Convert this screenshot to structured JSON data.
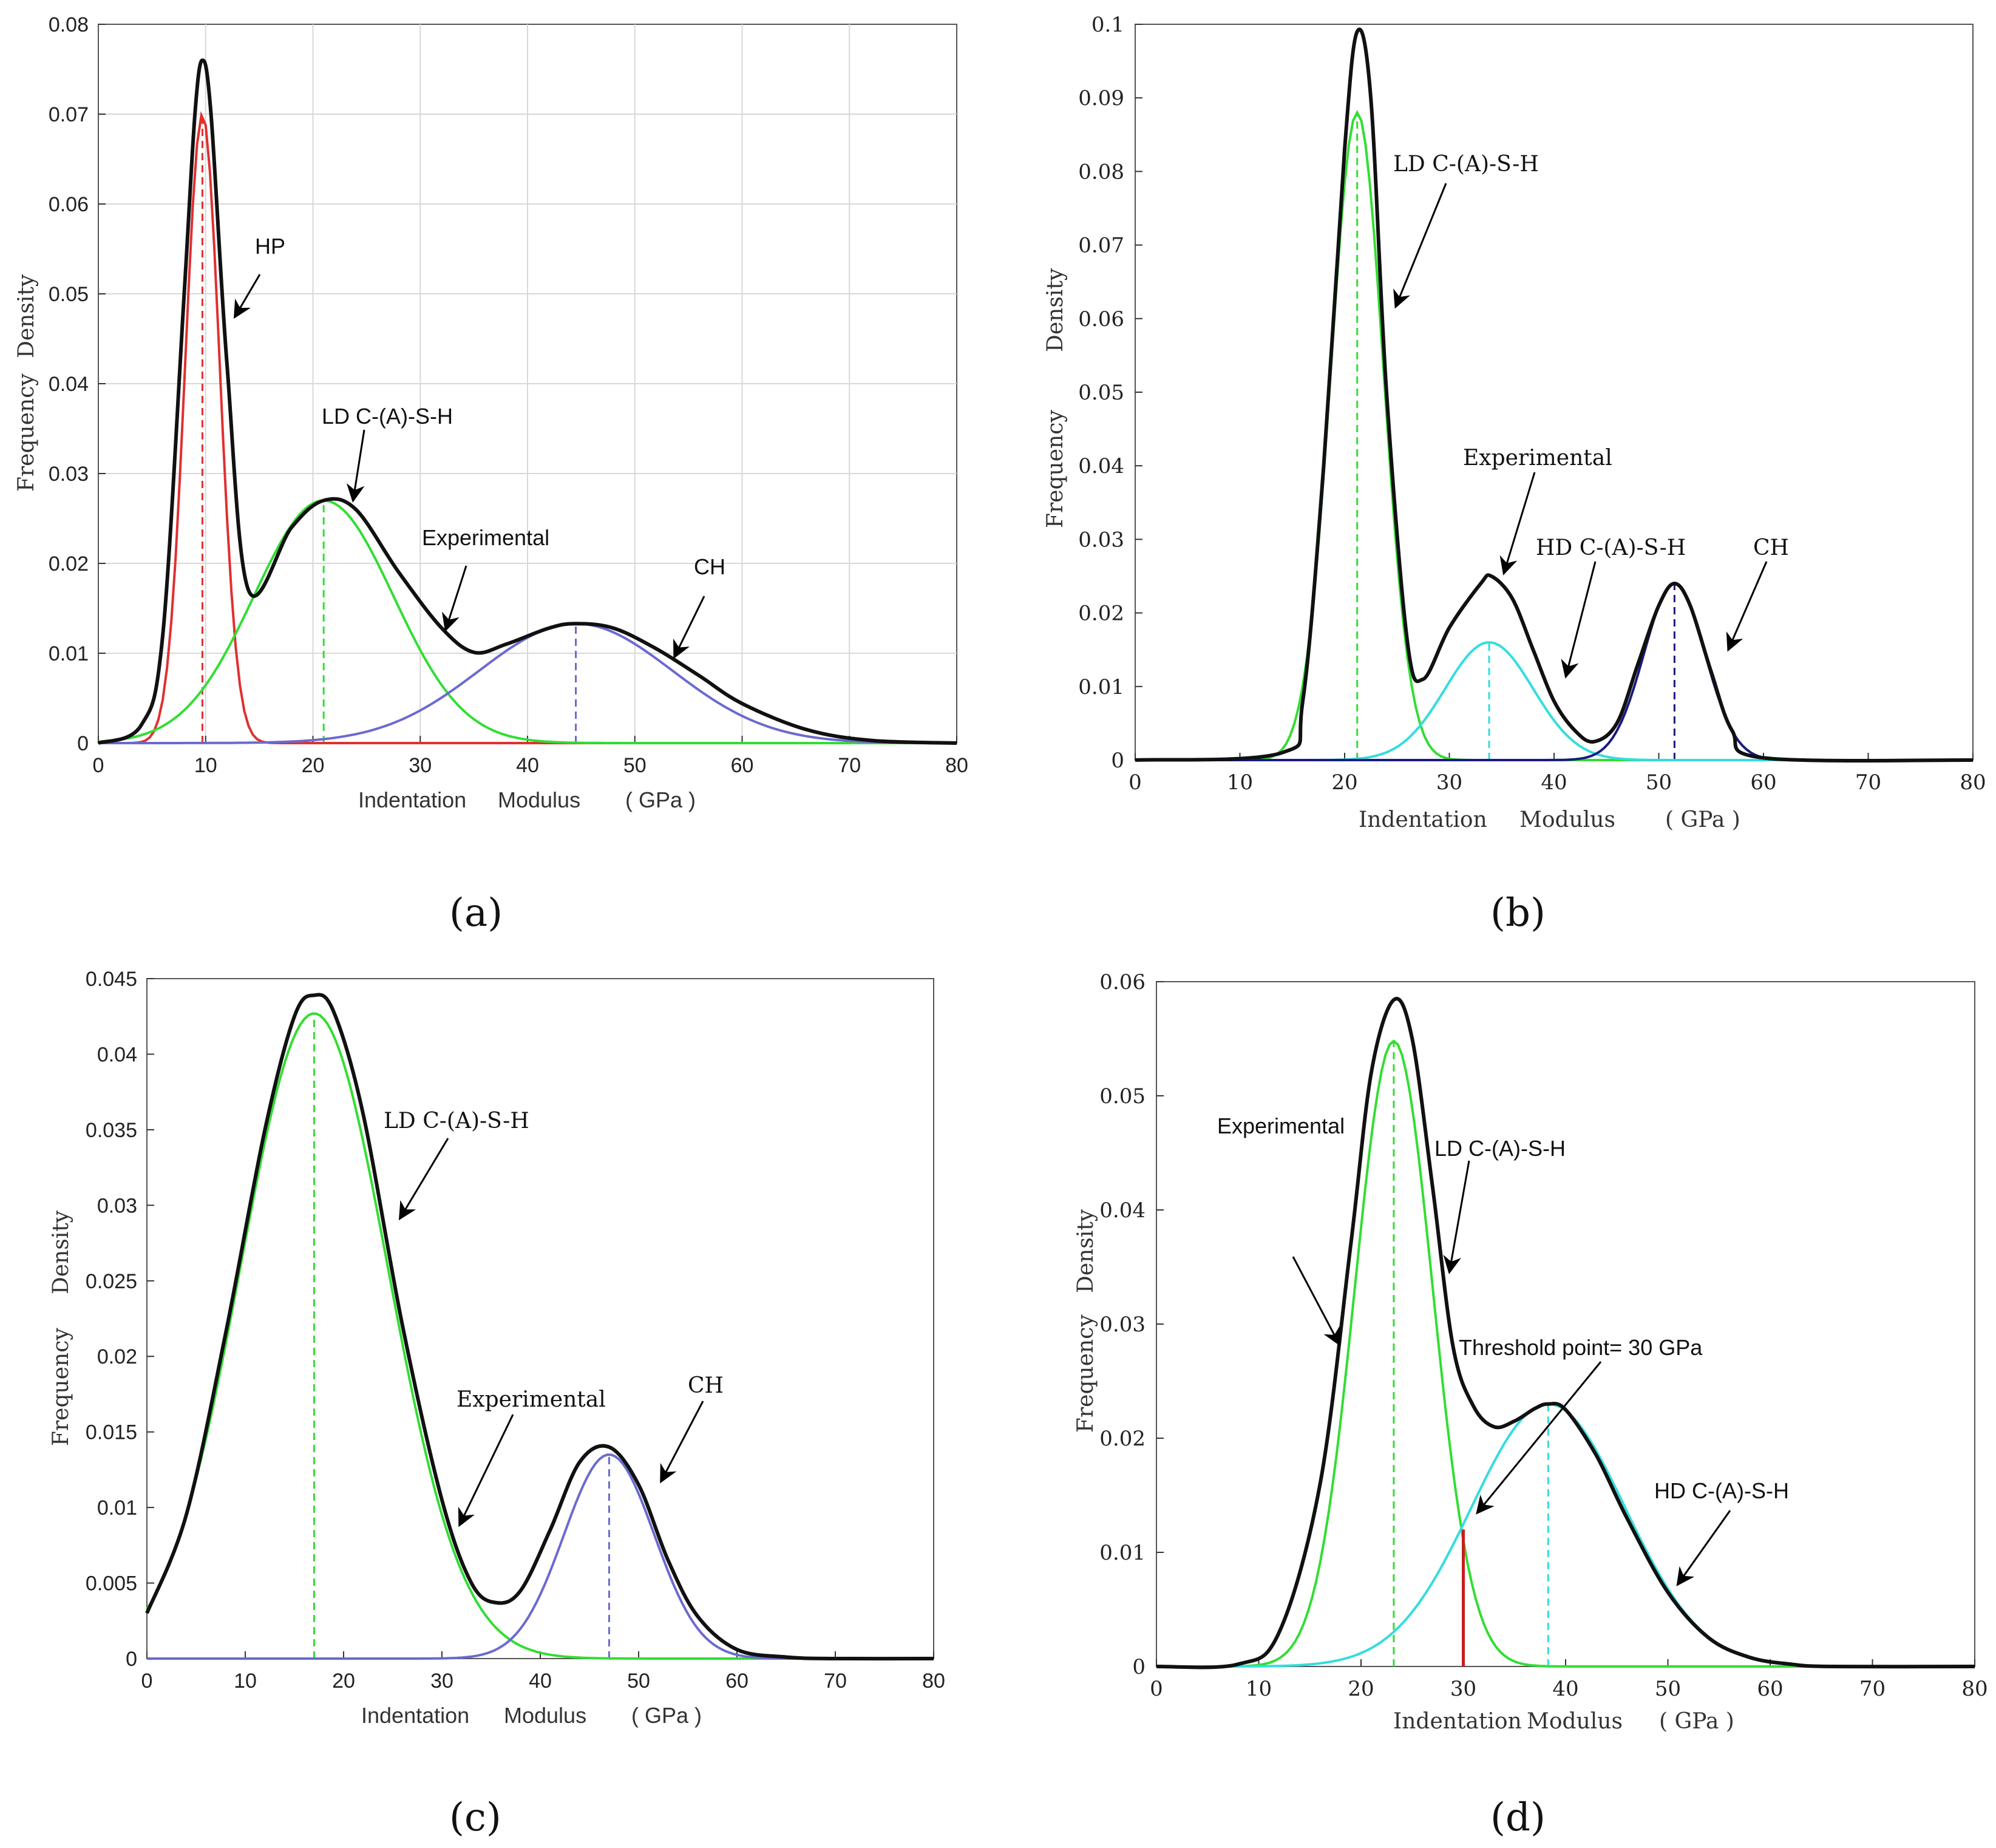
{
  "panels": {
    "a": {
      "caption": "(a)",
      "xlabel_parts": [
        "Indentation",
        "Modulus",
        "( GPa )"
      ],
      "ylabel_parts": [
        "Frequency",
        "Density"
      ],
      "annotations": [
        "HP",
        "LD C-(A)-S-H",
        "Experimental",
        "CH"
      ]
    },
    "b": {
      "caption": "(b)",
      "xlabel_parts": [
        "Indentation",
        "Modulus",
        "( GPa )"
      ],
      "ylabel_parts": [
        "Frequency",
        "Density"
      ],
      "annotations": [
        "LD C-(A)-S-H",
        "Experimental",
        "HD C-(A)-S-H",
        "CH"
      ]
    },
    "c": {
      "caption": "(c)",
      "xlabel_parts": [
        "Indentation",
        "Modulus",
        "( GPa )"
      ],
      "ylabel_parts": [
        "Frequency",
        "Density"
      ],
      "annotations": [
        "LD C-(A)-S-H",
        "Experimental",
        "CH"
      ]
    },
    "d": {
      "caption": "(d)",
      "xlabel_parts": [
        "Indentation",
        "Modulus",
        "( GPa )"
      ],
      "ylabel_parts": [
        "Frequency",
        "Density"
      ],
      "annotations": [
        "Experimental",
        "LD C-(A)-S-H",
        "Threshold point= 30 GPa",
        "HD C-(A)-S-H"
      ]
    }
  },
  "chart_data": [
    {
      "panel": "a",
      "type": "line",
      "title": "",
      "xlabel": "Indentation Modulus ( GPa )",
      "ylabel": "Frequency Density",
      "xlim": [
        0,
        80
      ],
      "ylim": [
        0,
        0.08
      ],
      "xticks": [
        "0",
        "10",
        "20",
        "30",
        "40",
        "50",
        "60",
        "70",
        "80"
      ],
      "yticks": [
        "0",
        "0.01",
        "0.02",
        "0.03",
        "0.04",
        "0.05",
        "0.06",
        "0.07",
        "0.08"
      ],
      "grid": true,
      "components": [
        {
          "name": "HP",
          "color": "#e03030",
          "mean": 9.7,
          "sd": 1.6,
          "peak": 0.07
        },
        {
          "name": "LD C-(A)-S-H",
          "color": "#33dd33",
          "mean": 21,
          "sd": 6.5,
          "peak": 0.027
        },
        {
          "name": "CH",
          "color": "#6a6ad0",
          "mean": 44.5,
          "sd": 9,
          "peak": 0.0133
        }
      ],
      "series": [
        {
          "name": "Experimental",
          "color": "#111111",
          "x": [
            0,
            4,
            6,
            8,
            9,
            9.7,
            10.5,
            12,
            14,
            18,
            21,
            24,
            28,
            32,
            35,
            38,
            42,
            44.5,
            48,
            52,
            56,
            60,
            66,
            72,
            80
          ],
          "y": [
            0,
            0.002,
            0.012,
            0.05,
            0.07,
            0.076,
            0.07,
            0.042,
            0.017,
            0.024,
            0.027,
            0.026,
            0.019,
            0.0128,
            0.0101,
            0.011,
            0.0128,
            0.0133,
            0.0128,
            0.0105,
            0.0075,
            0.0044,
            0.0015,
            0.0003,
            0
          ]
        }
      ]
    },
    {
      "panel": "b",
      "type": "line",
      "title": "",
      "xlabel": "Indentation Modulus ( GPa )",
      "ylabel": "Frequency Density",
      "xlim": [
        0,
        80
      ],
      "ylim": [
        0,
        0.1
      ],
      "xticks": [
        "0",
        "10",
        "20",
        "30",
        "40",
        "50",
        "60",
        "70",
        "80"
      ],
      "yticks": [
        "0",
        "0.01",
        "0.02",
        "0.03",
        "0.04",
        "0.05",
        "0.06",
        "0.07",
        "0.08",
        "0.09",
        "0.1"
      ],
      "grid": false,
      "components": [
        {
          "name": "LD C-(A)-S-H",
          "color": "#33dd33",
          "mean": 21.2,
          "sd": 2.5,
          "peak": 0.088
        },
        {
          "name": "HD C-(A)-S-H",
          "color": "#33dddd",
          "mean": 33.8,
          "sd": 4.2,
          "peak": 0.016
        },
        {
          "name": "CH",
          "color": "#1a1a80",
          "mean": 51.5,
          "sd": 2.9,
          "peak": 0.024
        }
      ],
      "series": [
        {
          "name": "Experimental",
          "color": "#111111",
          "x": [
            0,
            14,
            16,
            18,
            20,
            21.2,
            22.5,
            24,
            26,
            27.5,
            30,
            33,
            34,
            36,
            38,
            40,
            42,
            43.8,
            46,
            48,
            50,
            51.5,
            53,
            55,
            57,
            60,
            80
          ],
          "y": [
            0,
            0.001,
            0.008,
            0.04,
            0.083,
            0.099,
            0.09,
            0.05,
            0.016,
            0.011,
            0.018,
            0.024,
            0.025,
            0.022,
            0.015,
            0.008,
            0.004,
            0.0025,
            0.005,
            0.013,
            0.021,
            0.024,
            0.021,
            0.012,
            0.004,
            0.0003,
            0
          ]
        }
      ]
    },
    {
      "panel": "c",
      "type": "line",
      "title": "",
      "xlabel": "Indentation Modulus ( GPa )",
      "ylabel": "Frequency Density",
      "xlim": [
        0,
        80
      ],
      "ylim": [
        0,
        0.045
      ],
      "xticks": [
        "0",
        "10",
        "20",
        "30",
        "40",
        "50",
        "60",
        "70",
        "80"
      ],
      "yticks": [
        "0",
        "0.005",
        "0.01",
        "0.015",
        "0.02",
        "0.025",
        "0.03",
        "0.035",
        "0.04",
        "0.045"
      ],
      "grid": false,
      "components": [
        {
          "name": "LD C-(A)-S-H",
          "color": "#33dd33",
          "mean": 17,
          "sd": 7.5,
          "peak": 0.0427
        },
        {
          "name": "CH",
          "color": "#6a6ad0",
          "mean": 47,
          "sd": 4.6,
          "peak": 0.0135
        }
      ],
      "series": [
        {
          "name": "Experimental",
          "color": "#111111",
          "x": [
            0,
            4,
            8,
            12,
            15,
            17,
            19,
            22,
            26,
            30,
            33,
            35.5,
            38,
            41,
            44,
            47,
            50,
            53,
            56,
            60,
            65,
            70,
            80
          ],
          "y": [
            0.003,
            0.0095,
            0.0215,
            0.035,
            0.0425,
            0.0439,
            0.0428,
            0.036,
            0.022,
            0.0105,
            0.005,
            0.0037,
            0.0045,
            0.0085,
            0.013,
            0.014,
            0.0115,
            0.0065,
            0.0028,
            0.0006,
            0.0001,
            0,
            0
          ]
        }
      ]
    },
    {
      "panel": "d",
      "type": "line",
      "title": "",
      "xlabel": "Indentation Modulus ( GPa )",
      "ylabel": "Frequency Density",
      "xlim": [
        0,
        80
      ],
      "ylim": [
        0,
        0.06
      ],
      "xticks": [
        "0",
        "10",
        "20",
        "30",
        "40",
        "50",
        "60",
        "70",
        "80"
      ],
      "yticks": [
        "0",
        "0.01",
        "0.02",
        "0.03",
        "0.04",
        "0.05",
        "0.06"
      ],
      "grid": false,
      "threshold": 30,
      "threshold_color": "#c81e1e",
      "components": [
        {
          "name": "LD C-(A)-S-H",
          "color": "#33dd33",
          "mean": 23.2,
          "sd": 3.8,
          "peak": 0.0548
        },
        {
          "name": "HD C-(A)-S-H",
          "color": "#33dddd",
          "mean": 38.3,
          "sd": 7.5,
          "peak": 0.023
        }
      ],
      "series": [
        {
          "name": "Experimental",
          "color": "#111111",
          "x": [
            0,
            8,
            12,
            16,
            19,
            21,
            23.2,
            25,
            27,
            29,
            31,
            33,
            35,
            37,
            38.3,
            40,
            43,
            46,
            50,
            54,
            58,
            62,
            66,
            80
          ],
          "y": [
            0,
            0.0002,
            0.003,
            0.016,
            0.037,
            0.052,
            0.0584,
            0.055,
            0.042,
            0.028,
            0.0228,
            0.021,
            0.0215,
            0.0226,
            0.023,
            0.0225,
            0.0185,
            0.013,
            0.0065,
            0.0025,
            0.0008,
            0.0002,
            0,
            0
          ]
        }
      ]
    }
  ]
}
